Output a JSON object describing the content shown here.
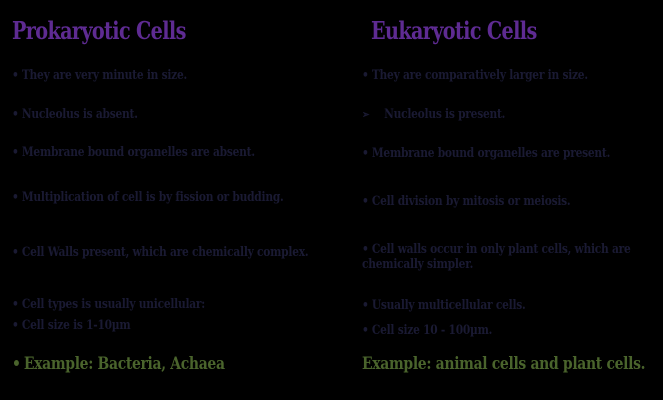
{
  "slide_title": "Prokaryotic vs Eukaryotic Cells comparison slide",
  "colors": {
    "background": "#000000",
    "heading_purple": "#5e2b92",
    "body_navy": "#1a1a33",
    "example_green": "#4a642c"
  },
  "columns": [
    {
      "title": "Prokaryotic Cells",
      "items": [
        {
          "bullet": "•",
          "text": "They are very minute in size."
        },
        {
          "bullet": "•",
          "text": "Nucleolus is absent."
        },
        {
          "bullet": "•",
          "text": "Membrane bound organelles are absent."
        },
        {
          "bullet": "•",
          "text": "Multiplication of cell is by fission or budding."
        },
        {
          "bullet": "•",
          "text": "Cell Walls present, which are chemically complex."
        },
        {
          "bullet": "•",
          "text": "Cell types is usually unicellular:"
        },
        {
          "bullet": "•",
          "text": "Cell size is 1-10µm"
        },
        {
          "bullet": "•",
          "text": "Example: Bacteria, Achaea",
          "emphasis": true
        }
      ]
    },
    {
      "title": "Eukaryotic Cells",
      "items": [
        {
          "bullet": "•",
          "text": "They are comparatively larger in size."
        },
        {
          "bullet": "➢",
          "text": "Nucleolus is present.",
          "indent": true
        },
        {
          "bullet": "•",
          "text": "Membrane bound organelles are present."
        },
        {
          "bullet": "•",
          "text": "Cell division by mitosis or meiosis."
        },
        {
          "bullet": "•",
          "text": "Cell walls occur in only plant cells, which are chemically simpler."
        },
        {
          "bullet": "•",
          "text": "Usually multicellular cells."
        },
        {
          "bullet": "•",
          "text": "Cell size 10 - 100µm."
        },
        {
          "bullet": "",
          "text": "Example: animal cells and plant cells.",
          "emphasis": true
        }
      ]
    }
  ]
}
